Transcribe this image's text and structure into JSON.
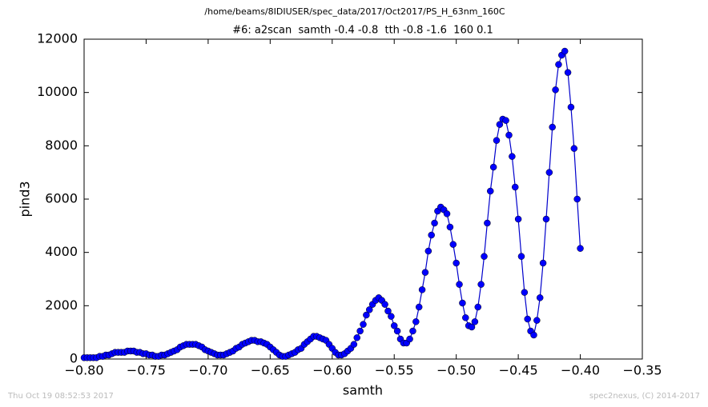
{
  "header": {
    "path": "/home/beams/8IDIUSER/spec_data/2017/Oct2017/PS_H_63nm_160C"
  },
  "chart_data": {
    "type": "line",
    "title": "#6: a2scan  samth -0.4 -0.8  tth -0.8 -1.6  160 0.1",
    "x_label": "samth",
    "y_label": "pind3",
    "x": [
      -0.8,
      -0.7975,
      -0.795,
      -0.7925,
      -0.79,
      -0.7875,
      -0.785,
      -0.7825,
      -0.78,
      -0.7775,
      -0.775,
      -0.7725,
      -0.77,
      -0.7675,
      -0.765,
      -0.7625,
      -0.76,
      -0.7575,
      -0.755,
      -0.7525,
      -0.75,
      -0.7475,
      -0.745,
      -0.7425,
      -0.74,
      -0.7375,
      -0.735,
      -0.7325,
      -0.73,
      -0.7275,
      -0.725,
      -0.7225,
      -0.72,
      -0.7175,
      -0.715,
      -0.7125,
      -0.71,
      -0.7075,
      -0.705,
      -0.7025,
      -0.7,
      -0.6975,
      -0.695,
      -0.6925,
      -0.69,
      -0.6875,
      -0.685,
      -0.6825,
      -0.68,
      -0.6775,
      -0.675,
      -0.6725,
      -0.67,
      -0.6675,
      -0.665,
      -0.6625,
      -0.66,
      -0.6575,
      -0.655,
      -0.6525,
      -0.65,
      -0.6475,
      -0.645,
      -0.6425,
      -0.64,
      -0.6375,
      -0.635,
      -0.6325,
      -0.63,
      -0.6275,
      -0.625,
      -0.6225,
      -0.62,
      -0.6175,
      -0.615,
      -0.6125,
      -0.61,
      -0.6075,
      -0.605,
      -0.6025,
      -0.6,
      -0.5975,
      -0.595,
      -0.5925,
      -0.59,
      -0.5875,
      -0.585,
      -0.5825,
      -0.58,
      -0.5775,
      -0.575,
      -0.5725,
      -0.57,
      -0.5675,
      -0.565,
      -0.5625,
      -0.56,
      -0.5575,
      -0.555,
      -0.5525,
      -0.55,
      -0.5475,
      -0.545,
      -0.5425,
      -0.54,
      -0.5375,
      -0.535,
      -0.5325,
      -0.53,
      -0.5275,
      -0.525,
      -0.5225,
      -0.52,
      -0.5175,
      -0.515,
      -0.5125,
      -0.51,
      -0.5075,
      -0.505,
      -0.5025,
      -0.5,
      -0.4975,
      -0.495,
      -0.4925,
      -0.49,
      -0.4875,
      -0.485,
      -0.4825,
      -0.48,
      -0.4775,
      -0.475,
      -0.4725,
      -0.47,
      -0.4675,
      -0.465,
      -0.4625,
      -0.46,
      -0.4575,
      -0.455,
      -0.4525,
      -0.45,
      -0.4475,
      -0.445,
      -0.4425,
      -0.44,
      -0.4375,
      -0.435,
      -0.4325,
      -0.43,
      -0.4275,
      -0.425,
      -0.4225,
      -0.42,
      -0.4175,
      -0.415,
      -0.4125,
      -0.41,
      -0.4075,
      -0.405,
      -0.4025,
      -0.4
    ],
    "series": [
      {
        "color": "#0000cc",
        "marker_color": "#0000ff",
        "values": [
          50,
          50,
          50,
          50,
          50,
          100,
          100,
          150,
          150,
          200,
          250,
          250,
          250,
          250,
          300,
          300,
          300,
          250,
          250,
          200,
          200,
          150,
          150,
          100,
          100,
          150,
          150,
          200,
          250,
          300,
          350,
          450,
          500,
          550,
          550,
          550,
          550,
          500,
          450,
          350,
          300,
          250,
          200,
          150,
          150,
          150,
          200,
          250,
          300,
          400,
          450,
          550,
          600,
          650,
          700,
          700,
          650,
          650,
          600,
          550,
          450,
          350,
          250,
          150,
          100,
          100,
          150,
          200,
          250,
          350,
          400,
          550,
          650,
          750,
          850,
          850,
          800,
          750,
          700,
          550,
          400,
          250,
          150,
          150,
          200,
          300,
          400,
          550,
          800,
          1050,
          1300,
          1650,
          1850,
          2050,
          2200,
          2300,
          2200,
          2050,
          1800,
          1600,
          1250,
          1050,
          750,
          600,
          600,
          750,
          1050,
          1400,
          1950,
          2600,
          3250,
          4050,
          4650,
          5100,
          5550,
          5700,
          5600,
          5450,
          4950,
          4300,
          3600,
          2800,
          2100,
          1550,
          1250,
          1200,
          1400,
          1950,
          2800,
          3850,
          5100,
          6300,
          7200,
          8200,
          8800,
          9000,
          8950,
          8400,
          7600,
          6450,
          5250,
          3850,
          2500,
          1500,
          1050,
          900,
          1450,
          2300,
          3600,
          5250,
          7000,
          8700,
          10100,
          11050,
          11400,
          11550,
          10750,
          9450,
          7900,
          6000,
          4150
        ]
      }
    ],
    "xlim": [
      -0.8,
      -0.35
    ],
    "xticks": [
      {
        "value": -0.8,
        "label": "−0.80"
      },
      {
        "value": -0.75,
        "label": "−0.75"
      },
      {
        "value": -0.7,
        "label": "−0.70"
      },
      {
        "value": -0.65,
        "label": "−0.65"
      },
      {
        "value": -0.6,
        "label": "−0.60"
      },
      {
        "value": -0.55,
        "label": "−0.55"
      },
      {
        "value": -0.5,
        "label": "−0.50"
      },
      {
        "value": -0.45,
        "label": "−0.45"
      },
      {
        "value": -0.4,
        "label": "−0.40"
      },
      {
        "value": -0.35,
        "label": "−0.35"
      }
    ],
    "ylim": [
      0,
      12000
    ],
    "yticks": [
      0,
      2000,
      4000,
      6000,
      8000,
      10000,
      12000
    ],
    "grid": false
  },
  "footer": {
    "date": "Thu Oct 19 08:52:53 2017",
    "credit": "spec2nexus, (C) 2014-2017"
  }
}
